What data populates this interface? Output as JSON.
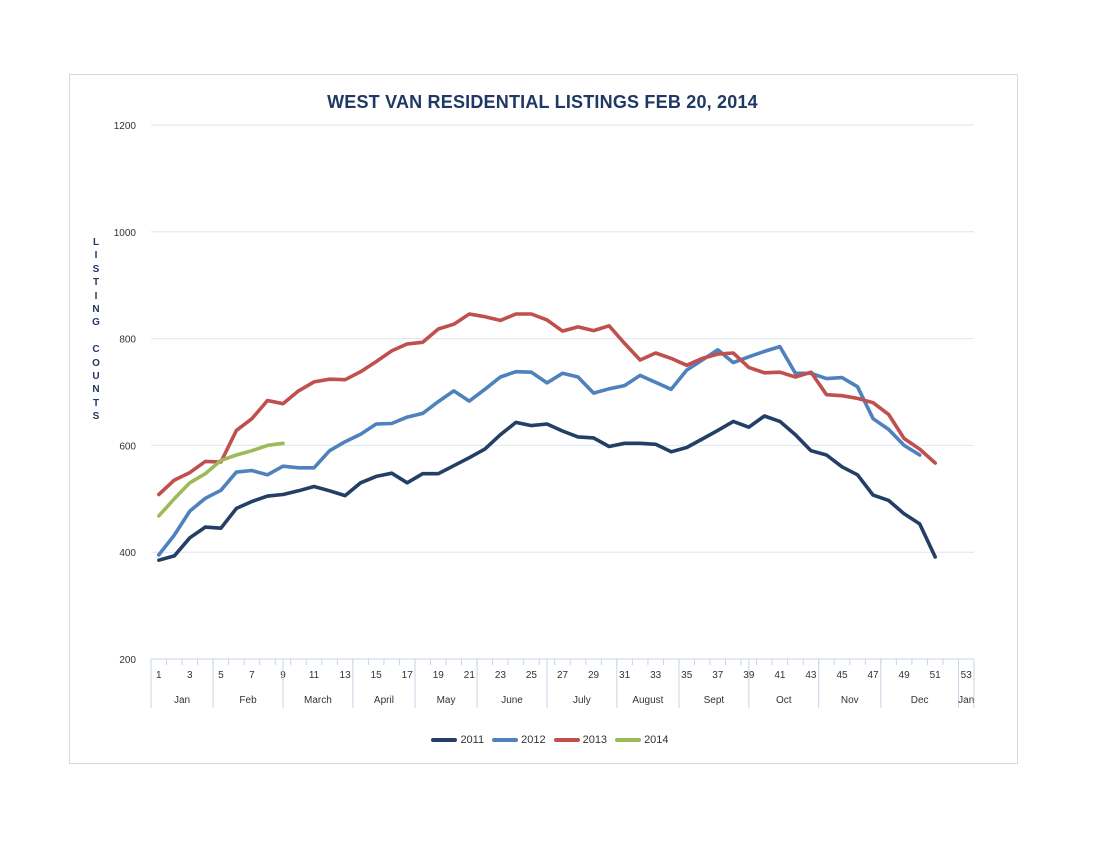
{
  "chart_data": {
    "type": "line",
    "title": "WEST VAN RESIDENTIAL LISTINGS FEB 20, 2014",
    "ylabel": "LISTING COUNTS",
    "ylabel_letters": [
      "L",
      "I",
      "S",
      "T",
      "I",
      "N",
      "G",
      "",
      "C",
      "O",
      "U",
      "N",
      "T",
      "S"
    ],
    "xlabel": "",
    "ylim": [
      200,
      1200
    ],
    "yticks": [
      200,
      400,
      600,
      800,
      1000,
      1200
    ],
    "xlim": [
      1,
      53
    ],
    "xticks": [
      1,
      3,
      5,
      7,
      9,
      11,
      13,
      15,
      17,
      19,
      21,
      23,
      25,
      27,
      29,
      31,
      33,
      35,
      37,
      39,
      41,
      43,
      45,
      47,
      49,
      51,
      53
    ],
    "months": [
      {
        "label": "Jan",
        "start": 0.5,
        "end": 4.5
      },
      {
        "label": "Feb",
        "start": 4.5,
        "end": 9.0
      },
      {
        "label": "March",
        "start": 9.0,
        "end": 13.5
      },
      {
        "label": "April",
        "start": 13.5,
        "end": 17.5
      },
      {
        "label": "May",
        "start": 17.5,
        "end": 21.5
      },
      {
        "label": "June",
        "start": 21.5,
        "end": 26.0
      },
      {
        "label": "July",
        "start": 26.0,
        "end": 30.5
      },
      {
        "label": "August",
        "start": 30.5,
        "end": 34.5
      },
      {
        "label": "Sept",
        "start": 34.5,
        "end": 39.0
      },
      {
        "label": "Oct",
        "start": 39.0,
        "end": 43.5
      },
      {
        "label": "Nov",
        "start": 43.5,
        "end": 47.5
      },
      {
        "label": "Dec",
        "start": 47.5,
        "end": 52.5
      },
      {
        "label": "Jan",
        "start": 52.5,
        "end": 53.5
      }
    ],
    "grid": true,
    "legend": "bottom",
    "series": [
      {
        "name": "2011",
        "color": "#243f66",
        "x_start": 1,
        "values": [
          385,
          393,
          427,
          447,
          445,
          482,
          495,
          505,
          508,
          515,
          523,
          515,
          506,
          530,
          542,
          548,
          530,
          547,
          547,
          562,
          577,
          593,
          620,
          643,
          637,
          640,
          627,
          616,
          614,
          598,
          604,
          604,
          602,
          588,
          596,
          612,
          628,
          645,
          634,
          655,
          645,
          620,
          590,
          582,
          560,
          545,
          507,
          497,
          472,
          453,
          391
        ]
      },
      {
        "name": "2012",
        "color": "#4f81bd",
        "x_start": 1,
        "values": [
          395,
          432,
          477,
          501,
          516,
          550,
          553,
          545,
          561,
          558,
          558,
          590,
          607,
          621,
          640,
          641,
          653,
          660,
          682,
          702,
          683,
          705,
          728,
          738,
          737,
          717,
          735,
          728,
          698,
          706,
          712,
          731,
          718,
          705,
          741,
          760,
          779,
          755,
          766,
          776,
          785,
          735,
          735,
          725,
          727,
          710,
          650,
          630,
          600,
          582
        ]
      },
      {
        "name": "2013",
        "color": "#c0504d",
        "x_start": 1,
        "values": [
          508,
          535,
          549,
          570,
          569,
          628,
          650,
          684,
          678,
          702,
          719,
          724,
          723,
          738,
          757,
          777,
          790,
          793,
          818,
          827,
          846,
          841,
          834,
          846,
          846,
          835,
          814,
          822,
          815,
          824,
          791,
          760,
          773,
          763,
          750,
          763,
          771,
          773,
          746,
          736,
          737,
          728,
          737,
          695,
          693,
          688,
          680,
          658,
          613,
          593,
          567
        ]
      },
      {
        "name": "2014",
        "color": "#9bbb59",
        "x_start": 1,
        "values": [
          468,
          500,
          530,
          547,
          572,
          582,
          590,
          600,
          604
        ]
      }
    ]
  }
}
